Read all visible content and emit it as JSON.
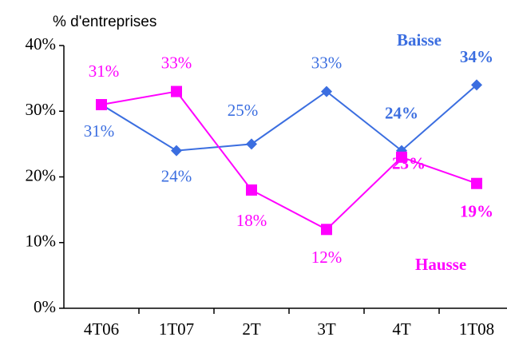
{
  "chart_data": {
    "type": "line",
    "y_label": "% d'entreprises",
    "categories": [
      "4T06",
      "1T07",
      "2T",
      "3T",
      "4T",
      "1T08"
    ],
    "series": [
      {
        "name": "Baisse",
        "color": "#3b6ee0",
        "marker": "diamond",
        "values": [
          31,
          24,
          25,
          33,
          24,
          34
        ],
        "value_labels": [
          "31%",
          "24%",
          "25%",
          "33%",
          "24%",
          "34%"
        ]
      },
      {
        "name": "Hausse",
        "color": "#ff00ff",
        "marker": "square",
        "values": [
          31,
          33,
          18,
          12,
          23,
          19
        ],
        "value_labels": [
          "31%",
          "33%",
          "18%",
          "12%",
          "23%",
          "19%"
        ]
      }
    ],
    "ylim": [
      0,
      40
    ],
    "yticks": [
      {
        "value": 0,
        "label": "0%"
      },
      {
        "value": 10,
        "label": "10%"
      },
      {
        "value": 20,
        "label": "20%"
      },
      {
        "value": 30,
        "label": "30%"
      },
      {
        "value": 40,
        "label": "40%"
      }
    ],
    "grid": false
  }
}
